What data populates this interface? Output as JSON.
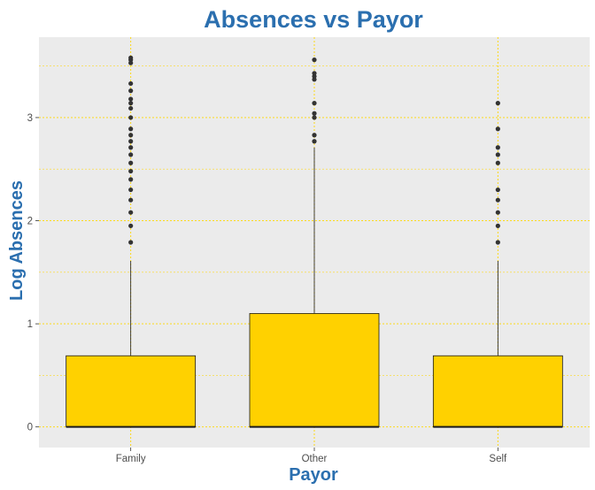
{
  "colors": {
    "title": "#2B6FAF",
    "panel": "#EBEBEB",
    "grid": "#FFD700",
    "box_fill": "#FFD100",
    "box_stroke": "#1a1a1a",
    "outlier": "#333333"
  },
  "chart_data": {
    "type": "boxplot",
    "title": "Absences vs Payor",
    "xlabel": "Payor",
    "ylabel": "Log Absences",
    "ylim": [
      -0.2,
      3.78
    ],
    "yticks": [
      0,
      1,
      2,
      3
    ],
    "grid": true,
    "categories": [
      "Family",
      "Other",
      "Self"
    ],
    "boxes": [
      {
        "category": "Family",
        "min": 0,
        "q1": 0,
        "median": 0,
        "q3": 0.69,
        "whisker_high": 1.61,
        "outliers": [
          1.79,
          1.95,
          2.08,
          2.2,
          2.3,
          2.4,
          2.48,
          2.56,
          2.64,
          2.71,
          2.77,
          2.83,
          2.89,
          3.0,
          3.09,
          3.14,
          3.18,
          3.26,
          3.33,
          3.53,
          3.56,
          3.58
        ]
      },
      {
        "category": "Other",
        "min": 0,
        "q1": 0,
        "median": 0,
        "q3": 1.1,
        "whisker_high": 2.71,
        "outliers": [
          2.77,
          2.83,
          3.0,
          3.04,
          3.14,
          3.37,
          3.4,
          3.43,
          3.56
        ]
      },
      {
        "category": "Self",
        "min": 0,
        "q1": 0,
        "median": 0,
        "q3": 0.69,
        "whisker_high": 1.61,
        "outliers": [
          1.79,
          1.95,
          2.08,
          2.2,
          2.3,
          2.56,
          2.64,
          2.71,
          2.89,
          3.14
        ]
      }
    ]
  }
}
